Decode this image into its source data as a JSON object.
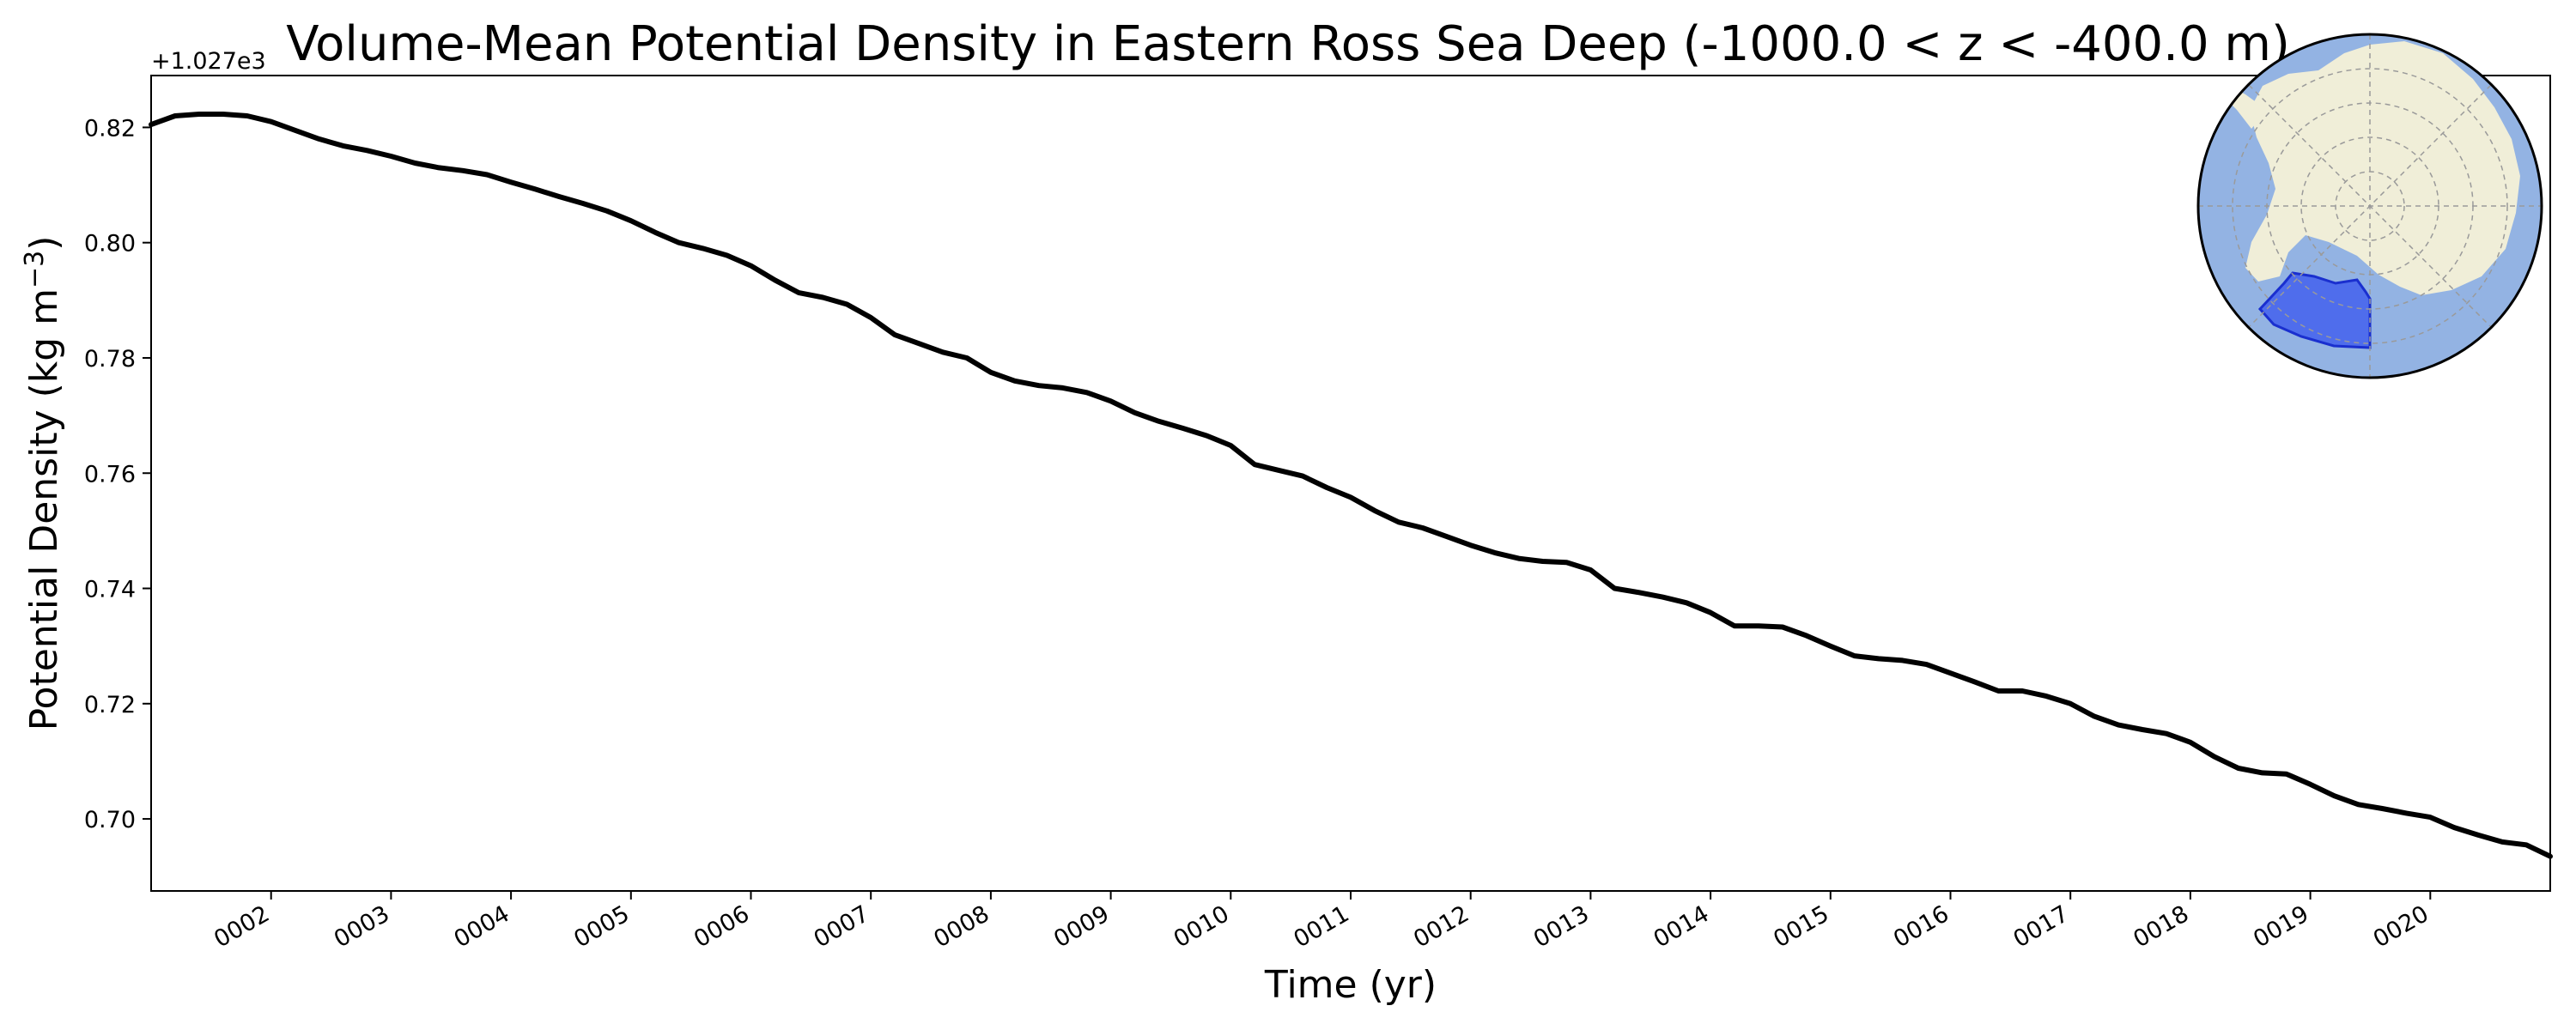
{
  "chart_data": {
    "type": "line",
    "title": "Volume-Mean Potential Density in Eastern Ross Sea Deep (-1000.0 < z < -400.0 m)",
    "xlabel": "Time (yr)",
    "ylabel_main": "Potential Density (kg m",
    "ylabel_sup": "−3",
    "ylabel_close": ")",
    "y_offset_text": "+1.027e3",
    "xlim": [
      1.0,
      21.0
    ],
    "ylim": [
      0.6875,
      0.829
    ],
    "x_ticks": [
      2,
      3,
      4,
      5,
      6,
      7,
      8,
      9,
      10,
      11,
      12,
      13,
      14,
      15,
      16,
      17,
      18,
      19,
      20
    ],
    "x_tick_labels": [
      "0002",
      "0003",
      "0004",
      "0005",
      "0006",
      "0007",
      "0008",
      "0009",
      "0010",
      "0011",
      "0012",
      "0013",
      "0014",
      "0015",
      "0016",
      "0017",
      "0018",
      "0019",
      "0020"
    ],
    "y_ticks": [
      0.7,
      0.72,
      0.74,
      0.76,
      0.78,
      0.8,
      0.82
    ],
    "y_tick_labels": [
      "0.70",
      "0.72",
      "0.74",
      "0.76",
      "0.78",
      "0.80",
      "0.82"
    ],
    "grid": false,
    "series": [
      {
        "color": "#000000",
        "x": [
          1.0,
          1.2,
          1.4,
          1.6,
          1.8,
          2.0,
          2.2,
          2.4,
          2.6,
          2.8,
          3.0,
          3.2,
          3.4,
          3.6,
          3.8,
          4.0,
          4.2,
          4.4,
          4.6,
          4.8,
          5.0,
          5.2,
          5.4,
          5.6,
          5.8,
          6.0,
          6.2,
          6.4,
          6.6,
          6.8,
          7.0,
          7.2,
          7.4,
          7.6,
          7.8,
          8.0,
          8.2,
          8.4,
          8.6,
          8.8,
          9.0,
          9.2,
          9.4,
          9.6,
          9.8,
          10.0,
          10.2,
          10.4,
          10.6,
          10.8,
          11.0,
          11.2,
          11.4,
          11.6,
          11.8,
          12.0,
          12.2,
          12.4,
          12.6,
          12.8,
          13.0,
          13.2,
          13.4,
          13.6,
          13.8,
          14.0,
          14.2,
          14.4,
          14.6,
          14.8,
          15.0,
          15.2,
          15.4,
          15.6,
          15.8,
          16.0,
          16.2,
          16.4,
          16.6,
          16.8,
          17.0,
          17.2,
          17.4,
          17.6,
          17.8,
          18.0,
          18.2,
          18.4,
          18.6,
          18.8,
          19.0,
          19.2,
          19.4,
          19.6,
          19.8,
          20.0,
          20.2,
          20.4,
          20.6,
          20.8,
          21.0
        ],
        "y": [
          0.8205,
          0.822,
          0.8223,
          0.8223,
          0.822,
          0.821,
          0.8195,
          0.818,
          0.8168,
          0.816,
          0.815,
          0.8138,
          0.813,
          0.8125,
          0.8118,
          0.8105,
          0.8093,
          0.808,
          0.8068,
          0.8055,
          0.8038,
          0.8018,
          0.8,
          0.799,
          0.7978,
          0.796,
          0.7935,
          0.7913,
          0.7905,
          0.7893,
          0.787,
          0.784,
          0.7825,
          0.781,
          0.78,
          0.7775,
          0.776,
          0.7752,
          0.7748,
          0.774,
          0.7725,
          0.7705,
          0.769,
          0.7678,
          0.7665,
          0.7648,
          0.7615,
          0.7605,
          0.7595,
          0.7575,
          0.7558,
          0.7535,
          0.7515,
          0.7505,
          0.749,
          0.7475,
          0.7462,
          0.7452,
          0.7447,
          0.7445,
          0.7432,
          0.74,
          0.7393,
          0.7385,
          0.7375,
          0.7358,
          0.7335,
          0.7335,
          0.7333,
          0.7318,
          0.73,
          0.7283,
          0.7278,
          0.7275,
          0.7268,
          0.7253,
          0.7238,
          0.7222,
          0.7222,
          0.7213,
          0.72,
          0.7178,
          0.7163,
          0.7155,
          0.7148,
          0.7133,
          0.7108,
          0.7088,
          0.708,
          0.7078,
          0.706,
          0.704,
          0.7025,
          0.7018,
          0.701,
          0.7003,
          0.6985,
          0.6972,
          0.696,
          0.6955,
          0.6935
        ]
      }
    ]
  },
  "inset_map": {
    "ocean_color": "#93b3e3",
    "land_color": "#f0eed8",
    "region_color": "#3f5bee",
    "region_edge_color": "#1a2fcf",
    "graticule_color": "#9a9a9a"
  }
}
